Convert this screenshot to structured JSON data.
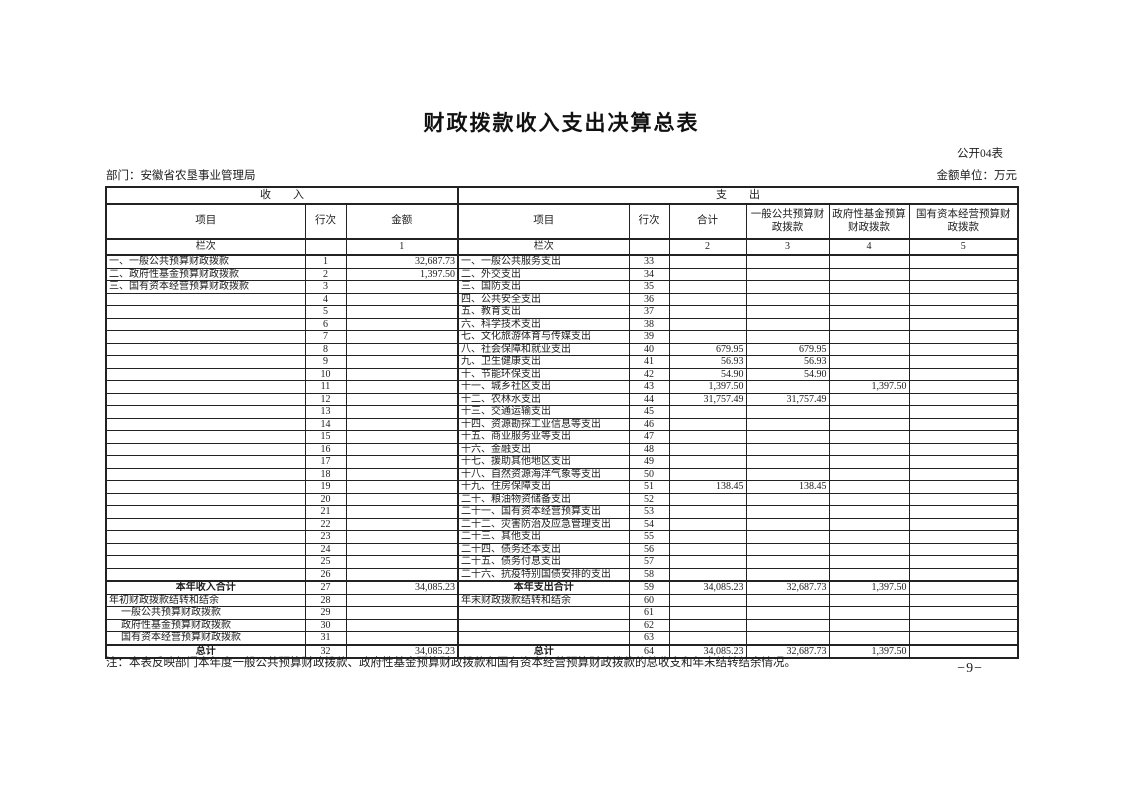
{
  "page": {
    "title": "财政拨款收入支出决算总表",
    "table_code": "公开04表",
    "department": "部门：安徽省农垦事业管理局",
    "unit": "金额单位：万元",
    "note": "注：本表反映部门本年度一般公共预算财政拨款、政府性基金预算财政拨款和国有资本经营预算财政拨款的总收支和年末结转结余情况。",
    "page_number": "−9−"
  },
  "table": {
    "income_header": "收　　入",
    "expense_header": "支　　出",
    "headers": {
      "item": "项目",
      "row_no": "行次",
      "amount": "金额",
      "total": "合计",
      "general": "一般公共预算财政拨款",
      "gov_fund": "政府性基金预算财政拨款",
      "state_capital": "国有资本经营预算财政拨款"
    },
    "lanci": "栏次",
    "column_numbers": [
      "1",
      "2",
      "3",
      "4",
      "5"
    ],
    "rows": [
      {
        "l": "一、一般公共预算财政拨款",
        "ln": "1",
        "la": "32,687.73",
        "r": "一、一般公共服务支出",
        "rn": "33"
      },
      {
        "l": "二、政府性基金预算财政拨款",
        "ln": "2",
        "la": "1,397.50",
        "r": "二、外交支出",
        "rn": "34"
      },
      {
        "l": "三、国有资本经营预算财政拨款",
        "ln": "3",
        "r": "三、国防支出",
        "rn": "35"
      },
      {
        "ln": "4",
        "r": "四、公共安全支出",
        "rn": "36"
      },
      {
        "ln": "5",
        "r": "五、教育支出",
        "rn": "37"
      },
      {
        "ln": "6",
        "r": "六、科学技术支出",
        "rn": "38"
      },
      {
        "ln": "7",
        "r": "七、文化旅游体育与传媒支出",
        "rn": "39"
      },
      {
        "ln": "8",
        "r": "八、社会保障和就业支出",
        "rn": "40",
        "rt": "679.95",
        "rg": "679.95"
      },
      {
        "ln": "9",
        "r": "九、卫生健康支出",
        "rn": "41",
        "rt": "56.93",
        "rg": "56.93"
      },
      {
        "ln": "10",
        "r": "十、节能环保支出",
        "rn": "42",
        "rt": "54.90",
        "rg": "54.90"
      },
      {
        "ln": "11",
        "r": "十一、城乡社区支出",
        "rn": "43",
        "rt": "1,397.50",
        "rf": "1,397.50"
      },
      {
        "ln": "12",
        "r": "十二、农林水支出",
        "rn": "44",
        "rt": "31,757.49",
        "rg": "31,757.49"
      },
      {
        "ln": "13",
        "r": "十三、交通运输支出",
        "rn": "45"
      },
      {
        "ln": "14",
        "r": "十四、资源勘探工业信息等支出",
        "rn": "46"
      },
      {
        "ln": "15",
        "r": "十五、商业服务业等支出",
        "rn": "47"
      },
      {
        "ln": "16",
        "r": "十六、金融支出",
        "rn": "48"
      },
      {
        "ln": "17",
        "r": "十七、援助其他地区支出",
        "rn": "49"
      },
      {
        "ln": "18",
        "r": "十八、自然资源海洋气象等支出",
        "rn": "50"
      },
      {
        "ln": "19",
        "r": "十九、住房保障支出",
        "rn": "51",
        "rt": "138.45",
        "rg": "138.45"
      },
      {
        "ln": "20",
        "r": "二十、粮油物资储备支出",
        "rn": "52"
      },
      {
        "ln": "21",
        "r": "二十一、国有资本经营预算支出",
        "rn": "53"
      },
      {
        "ln": "22",
        "r": "二十二、灾害防治及应急管理支出",
        "rn": "54"
      },
      {
        "ln": "23",
        "r": "二十三、其他支出",
        "rn": "55"
      },
      {
        "ln": "24",
        "r": "二十四、债务还本支出",
        "rn": "56"
      },
      {
        "ln": "25",
        "r": "二十五、债务付息支出",
        "rn": "57"
      },
      {
        "ln": "26",
        "r": "二十六、抗疫特别国债安排的支出",
        "rn": "58"
      },
      {
        "l": "本年收入合计",
        "lc": true,
        "ln": "27",
        "la": "34,085.23",
        "r": "本年支出合计",
        "rc": true,
        "rn": "59",
        "rt": "34,085.23",
        "rg": "32,687.73",
        "rf": "1,397.50",
        "tb": true
      },
      {
        "l": "年初财政拨款结转和结余",
        "ln": "28",
        "r": "年末财政拨款结转和结余",
        "rn": "60"
      },
      {
        "l": "一般公共预算财政拨款",
        "li": true,
        "ln": "29",
        "rn": "61"
      },
      {
        "l": "政府性基金预算财政拨款",
        "li": true,
        "ln": "30",
        "rn": "62"
      },
      {
        "l": "国有资本经营预算财政拨款",
        "li": true,
        "ln": "31",
        "rn": "63"
      },
      {
        "l": "总计",
        "lc": true,
        "ln": "32",
        "la": "34,085.23",
        "r": "总计",
        "rc": true,
        "rn": "64",
        "rt": "34,085.23",
        "rg": "32,687.73",
        "rf": "1,397.50",
        "tb": true
      }
    ]
  }
}
